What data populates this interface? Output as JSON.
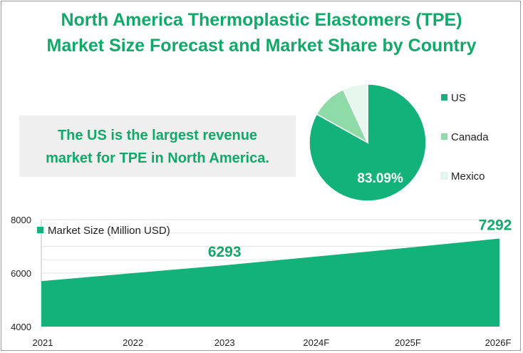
{
  "title_line1": "North America Thermoplastic Elastomers (TPE)",
  "title_line2": "Market Size Forecast and Market Share by Country",
  "callout_line1": "The US is the largest revenue",
  "callout_line2": "market for TPE in North America.",
  "chart_data": [
    {
      "type": "pie",
      "labels": [
        "US",
        "Canada",
        "Mexico"
      ],
      "values": [
        83.09,
        10.0,
        6.91
      ],
      "colors": [
        "#12b27a",
        "#8edba7",
        "#e6f7ee"
      ],
      "data_labels": [
        "83.09%",
        "",
        ""
      ],
      "legend_position": "right"
    },
    {
      "type": "area",
      "categories": [
        "2021",
        "2022",
        "2023",
        "2024F",
        "2025F",
        "2026F"
      ],
      "series": [
        {
          "name": "Market Size (Million USD)",
          "values": [
            5700,
            6000,
            6293,
            6620,
            6950,
            7292
          ],
          "color": "#12b27a"
        }
      ],
      "data_labels": [
        "",
        "",
        "6293",
        "",
        "",
        "7292"
      ],
      "ylim": [
        4000,
        8000
      ],
      "yticks": [
        "4000",
        "6000",
        "8000"
      ],
      "grid": true,
      "legend_position": "top-left"
    }
  ]
}
